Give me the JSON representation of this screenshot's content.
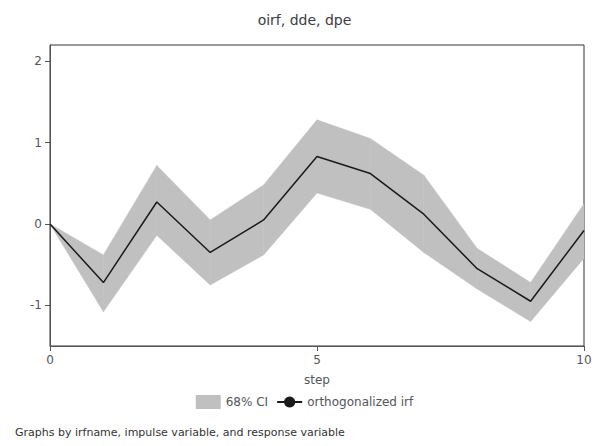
{
  "chart_data": {
    "type": "line",
    "title": "oirf, dde, dpe",
    "xlabel": "step",
    "x": [
      0,
      1,
      2,
      3,
      4,
      5,
      6,
      7,
      8,
      9,
      10
    ],
    "series": [
      {
        "name": "68% CI",
        "type": "band",
        "color": "#c0c0c0",
        "lower": [
          0.0,
          -1.08,
          -0.14,
          -0.75,
          -0.38,
          0.38,
          0.18,
          -0.35,
          -0.8,
          -1.2,
          -0.42
        ],
        "upper": [
          0.0,
          -0.38,
          0.72,
          0.05,
          0.48,
          1.28,
          1.05,
          0.6,
          -0.3,
          -0.72,
          0.25
        ]
      },
      {
        "name": "orthogonalized irf",
        "type": "line",
        "color": "#1a1a1a",
        "values": [
          0.0,
          -0.72,
          0.27,
          -0.35,
          0.05,
          0.83,
          0.62,
          0.12,
          -0.55,
          -0.95,
          -0.08
        ]
      }
    ],
    "xlim": [
      0,
      10
    ],
    "xticks": [
      0,
      5,
      10
    ],
    "ylim": [
      -1.5,
      2.2
    ],
    "yticks": [
      -1,
      0,
      1,
      2
    ],
    "grid": false,
    "legend": "bottom",
    "footer": "Graphs by irfname, impulse variable, and response variable"
  }
}
